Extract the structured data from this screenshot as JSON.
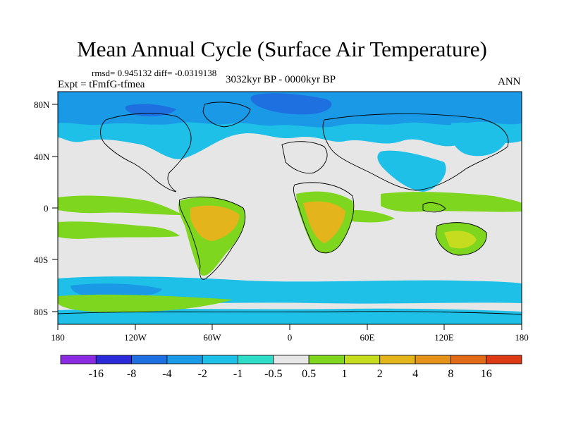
{
  "title": "Mean Annual Cycle (Surface Air Temperature)",
  "stats": "rmsd= 0.945132 diff= -0.0319138",
  "experiment": "Expt = tFmfG-tfmea",
  "period": "3032kyr BP - 0000kyr BP",
  "season": "ANN",
  "axes": {
    "y_labels": [
      "80N",
      "40N",
      "0",
      "40S",
      "80S"
    ],
    "x_labels": [
      "180",
      "120W",
      "60W",
      "0",
      "60E",
      "120E",
      "180"
    ]
  },
  "colorbar": {
    "labels": [
      "-16",
      "-8",
      "-4",
      "-2",
      "-1",
      "-0.5",
      "0.5",
      "1",
      "2",
      "4",
      "8",
      "16"
    ],
    "colors": [
      "#8a2be2",
      "#2a2ad8",
      "#1e6fe0",
      "#1a9ae6",
      "#1ec0e8",
      "#2edcc8",
      "#e6e6e6",
      "#7ed61e",
      "#c6dc1e",
      "#e4b41c",
      "#e4921a",
      "#e06a18",
      "#dc3a14"
    ]
  },
  "map_colors": {
    "ocean_neutral": "#e6e6e6",
    "land_outline": "#000000"
  }
}
